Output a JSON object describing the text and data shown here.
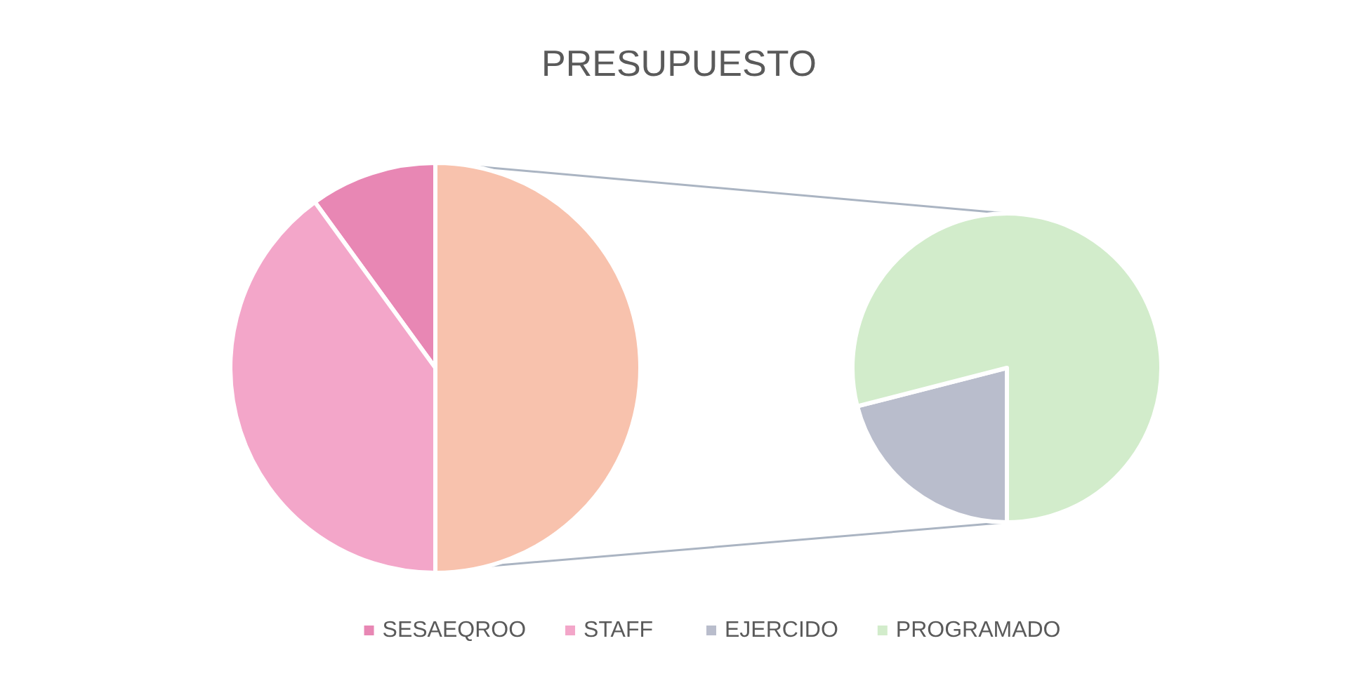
{
  "chart_data": [
    {
      "type": "pie",
      "title": "PRESUPUESTO",
      "categories": [
        "SESAEQROO",
        "STAFF",
        null
      ],
      "values": [
        10,
        40,
        50
      ],
      "colors": [
        "#e887b4",
        "#f3a6c9",
        "#f8c2ad"
      ],
      "legend": "bottom"
    },
    {
      "type": "pie",
      "categories": [
        "EJERCIDO",
        "PROGRAMADO"
      ],
      "values": [
        21,
        79
      ],
      "colors": [
        "#b9bdcc",
        "#d2eccb"
      ],
      "legend": "bottom"
    }
  ]
}
